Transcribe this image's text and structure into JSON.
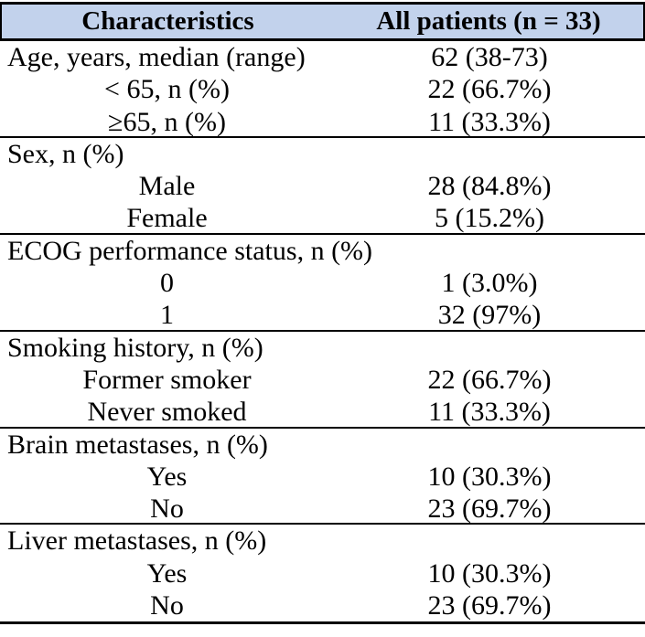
{
  "title": "Patient characteristics table",
  "colors": {
    "header_bg": "#c2d2ec",
    "rule": "#000000",
    "text": "#000000"
  },
  "table": {
    "header": {
      "characteristics": "Characteristics",
      "all_patients": "All patients (n = 33)"
    },
    "rows": [
      {
        "label": "Age, years, median (range)",
        "value": "62 (38-73)",
        "level": "top",
        "section_end": false
      },
      {
        "label": "< 65, n (%)",
        "value": "22 (66.7%)",
        "level": "sub",
        "section_end": false
      },
      {
        "label": "≥65, n (%)",
        "value": "11 (33.3%)",
        "level": "sub",
        "section_end": true
      },
      {
        "label": "Sex, n (%)",
        "value": "",
        "level": "top",
        "section_end": false
      },
      {
        "label": "Male",
        "value": "28 (84.8%)",
        "level": "sub",
        "section_end": false
      },
      {
        "label": "Female",
        "value": "5 (15.2%)",
        "level": "sub",
        "section_end": true
      },
      {
        "label": "ECOG performance status, n (%)",
        "value": "",
        "level": "top",
        "section_end": false
      },
      {
        "label": "0",
        "value": "1 (3.0%)",
        "level": "sub",
        "section_end": false
      },
      {
        "label": "1",
        "value": "32 (97%)",
        "level": "sub",
        "section_end": true
      },
      {
        "label": "Smoking history, n (%)",
        "value": "",
        "level": "top",
        "section_end": false
      },
      {
        "label": "Former smoker",
        "value": "22 (66.7%)",
        "level": "sub",
        "section_end": false
      },
      {
        "label": "Never smoked",
        "value": "11 (33.3%)",
        "level": "sub",
        "section_end": true
      },
      {
        "label": "Brain metastases, n (%)",
        "value": "",
        "level": "top",
        "section_end": false
      },
      {
        "label": "Yes",
        "value": "10 (30.3%)",
        "level": "sub",
        "section_end": false
      },
      {
        "label": "No",
        "value": "23 (69.7%)",
        "level": "sub",
        "section_end": true
      },
      {
        "label": "Liver metastases, n (%)",
        "value": "",
        "level": "top",
        "section_end": false
      },
      {
        "label": "Yes",
        "value": "10 (30.3%)",
        "level": "sub",
        "section_end": false
      },
      {
        "label": "No",
        "value": "23 (69.7%)",
        "level": "sub",
        "section_end": true
      }
    ]
  }
}
